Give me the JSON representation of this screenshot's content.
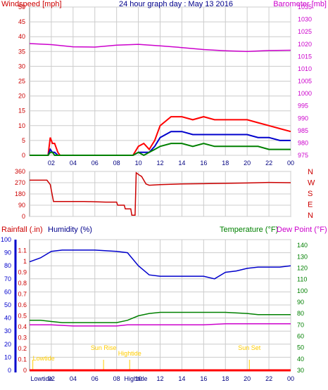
{
  "chart_data": [
    {
      "panel": "wind",
      "type": "line",
      "title": "24 hour graph day : May 13 2016",
      "ylabel_left": "Windspeed [mph]",
      "ylabel_right": "Barometer [mb]",
      "ylim_left": [
        0,
        50
      ],
      "ylim_right": [
        975,
        1035
      ],
      "yticks_left": [
        "0",
        "5",
        "10",
        "15",
        "20",
        "25",
        "30",
        "35",
        "40",
        "45",
        "50"
      ],
      "yticks_right": [
        "975",
        "980",
        "985",
        "990",
        "995",
        "1000",
        "1005",
        "1010",
        "1015",
        "1020",
        "1025",
        "1030",
        "1035"
      ],
      "xticks": [
        "02",
        "04",
        "06",
        "08",
        "10",
        "12",
        "14",
        "16",
        "18",
        "20",
        "22",
        "00"
      ],
      "grid": true,
      "colors": {
        "gust": "#ff0000",
        "avg": "#0000cc",
        "speed": "#008000",
        "baro": "#cc00cc"
      },
      "series": [
        {
          "key": "baro",
          "axis": "right",
          "x": [
            0,
            2,
            4,
            6,
            8,
            10,
            12,
            14,
            16,
            18,
            20,
            22,
            24
          ],
          "values": [
            1020.2,
            1019.8,
            1018.9,
            1018.8,
            1019.6,
            1019.9,
            1019.3,
            1018.6,
            1017.8,
            1017.3,
            1017.0,
            1017.4,
            1017.5
          ]
        },
        {
          "key": "gust",
          "axis": "left",
          "x": [
            0,
            1.7,
            1.9,
            2.1,
            2.3,
            2.6,
            2.8,
            9.5,
            10,
            10.5,
            11,
            11.5,
            12,
            13,
            14,
            15,
            16,
            17,
            18,
            19,
            20,
            21,
            22,
            23,
            24
          ],
          "values": [
            0,
            0,
            6,
            4,
            4,
            1,
            0,
            0,
            3,
            4,
            2,
            5,
            10,
            13,
            13,
            12,
            13,
            12,
            12,
            12,
            12,
            11,
            10,
            9,
            8
          ]
        },
        {
          "key": "avg",
          "axis": "left",
          "x": [
            0,
            1.7,
            1.9,
            2.1,
            2.3,
            2.6,
            2.8,
            9.5,
            10,
            10.5,
            11,
            11.5,
            12,
            13,
            14,
            15,
            16,
            17,
            18,
            19,
            20,
            21,
            22,
            23,
            24
          ],
          "values": [
            0,
            0,
            2,
            1,
            1,
            0,
            0,
            0,
            1,
            1,
            1,
            3,
            6,
            8,
            8,
            7,
            7,
            7,
            7,
            7,
            7,
            6,
            6,
            5,
            5
          ]
        },
        {
          "key": "speed",
          "axis": "left",
          "x": [
            0,
            1.7,
            1.9,
            2.1,
            2.3,
            2.6,
            2.8,
            9.5,
            10,
            10.5,
            11,
            11.5,
            12,
            13,
            14,
            15,
            16,
            17,
            18,
            19,
            20,
            21,
            22,
            23,
            24
          ],
          "values": [
            0,
            0,
            1,
            1,
            0,
            0,
            0,
            0,
            1,
            0,
            1,
            2,
            3,
            4,
            4,
            3,
            4,
            3,
            3,
            3,
            3,
            3,
            2,
            2,
            2
          ]
        }
      ]
    },
    {
      "panel": "direction",
      "type": "line",
      "ylim": [
        0,
        360
      ],
      "yticks": [
        "0",
        "90",
        "180",
        "270",
        "360"
      ],
      "compass": [
        "N",
        "W",
        "S",
        "E",
        "N"
      ],
      "xticks": [
        "02",
        "04",
        "06",
        "08",
        "10",
        "12",
        "14",
        "16",
        "18",
        "20",
        "22",
        "00"
      ],
      "grid": true,
      "color": "#cc0000",
      "x": [
        0,
        1.6,
        1.9,
        2.2,
        5,
        7,
        8,
        8.1,
        8.7,
        8.8,
        9.3,
        9.4,
        9.7,
        9.8,
        10.1,
        10.3,
        10.7,
        11,
        12,
        14,
        16,
        18,
        20,
        22,
        24
      ],
      "values": [
        290,
        290,
        255,
        120,
        120,
        115,
        115,
        90,
        90,
        60,
        60,
        10,
        10,
        350,
        330,
        320,
        260,
        250,
        255,
        260,
        262,
        265,
        268,
        272,
        270
      ]
    },
    {
      "panel": "temp-hum",
      "type": "line",
      "legend": [
        "Rainfall (.in)",
        "Humidity (%)",
        "Temperature (°F)",
        "Dew Point (°F)"
      ],
      "ylim_left": [
        0,
        100
      ],
      "yticks_left": [
        "0",
        "10",
        "20",
        "30",
        "40",
        "50",
        "60",
        "70",
        "80",
        "90",
        "100"
      ],
      "ylim_rain": [
        0,
        1.2
      ],
      "yticks_rain": [
        "0",
        "0.1",
        "0.2",
        "0.3",
        "0.4",
        "0.5",
        "0.6",
        "0.7",
        "0.8",
        "0.9",
        "1",
        "1.1"
      ],
      "ylim_right": [
        30,
        145
      ],
      "yticks_right": [
        "30",
        "40",
        "50",
        "60",
        "70",
        "80",
        "90",
        "100",
        "110",
        "120",
        "130",
        "140"
      ],
      "xticks": [
        "02",
        "04",
        "06",
        "08",
        "10",
        "12",
        "14",
        "16",
        "18",
        "20",
        "22",
        "00"
      ],
      "grid": true,
      "colors": {
        "rain": "#ff0000",
        "humidity": "#0000cc",
        "temperature": "#008000",
        "dewpoint": "#cc00cc",
        "annotation": "#ffcc00"
      },
      "annotations": [
        {
          "label": "Lowtide",
          "hour": 0.3
        },
        {
          "label": "Sun Rise",
          "hour": 6.8
        },
        {
          "label": "Hightide",
          "hour": 9.2
        },
        {
          "label": "Sun Set",
          "hour": 20.2
        }
      ],
      "bottom_labels": [
        "Lowtide",
        "Hightide"
      ],
      "series": [
        {
          "key": "humidity",
          "axis": "left",
          "x": [
            0,
            1,
            2,
            3,
            4,
            6,
            8,
            9,
            10,
            11,
            12,
            13,
            14,
            16,
            17,
            18,
            19,
            20,
            21,
            22,
            23,
            24
          ],
          "values": [
            83,
            86,
            91,
            92,
            92,
            92,
            91,
            90,
            80,
            73,
            72,
            72,
            72,
            72,
            70,
            75,
            76,
            78,
            79,
            79,
            79,
            80
          ]
        },
        {
          "key": "temperature",
          "axis": "right",
          "x": [
            0,
            1,
            2,
            3,
            4,
            6,
            8,
            9,
            10,
            11,
            12,
            14,
            16,
            18,
            20,
            21,
            22,
            24
          ],
          "values": [
            74,
            74,
            73,
            72,
            72,
            72,
            72,
            74,
            78,
            80,
            81,
            81,
            81,
            81,
            80,
            79,
            79,
            79
          ]
        },
        {
          "key": "dewpoint",
          "axis": "right",
          "x": [
            0,
            2,
            4,
            6,
            8,
            9,
            10,
            12,
            14,
            16,
            18,
            20,
            22,
            24
          ],
          "values": [
            70,
            70,
            69,
            69,
            69,
            70,
            70,
            70,
            70,
            70,
            71,
            71,
            71,
            71
          ]
        },
        {
          "key": "rain",
          "axis": "rain",
          "x": [
            0,
            24
          ],
          "values": [
            0,
            0
          ]
        }
      ]
    }
  ]
}
